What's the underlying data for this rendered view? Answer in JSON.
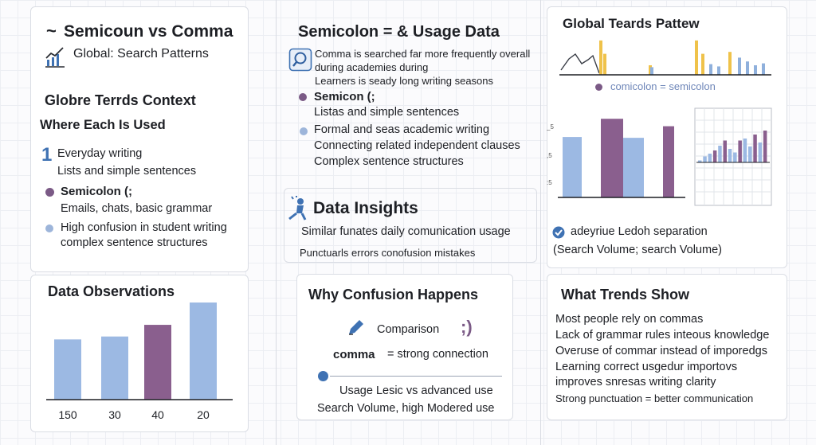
{
  "colors": {
    "blue_bar": "#9cb9e3",
    "purple_bar": "#8a5f8e",
    "yellow_bar": "#efc24a",
    "accent_blue": "#3f72b3"
  },
  "left": {
    "title": "Semicoun vs Comma",
    "subtitle": "Global: Search Patterns",
    "context_title": "Globre Terrds Context",
    "where_used": "Where Each Is Used",
    "list_number": "1",
    "item1_title": "Everyday writing",
    "item1_sub": "Lists and simple sentences",
    "item2_title": "Semicolon (;",
    "item2_sub": "Emails, chats, basic grammar",
    "item3_line1": "High confusion in student writing",
    "item3_line2": "complex sentence structures"
  },
  "observations": {
    "title": "Data Observations",
    "chart_data": {
      "type": "bar",
      "categories": [
        "150",
        "30",
        "40",
        "20"
      ],
      "values": [
        0.62,
        0.65,
        0.77,
        1.0
      ],
      "colors": [
        "blue",
        "blue",
        "purple",
        "blue"
      ]
    }
  },
  "middle": {
    "title": "Semicolon = & Usage Data",
    "search_line1": "Comma is searched far more frequently overall",
    "search_line2": "during academies during",
    "search_line3": "Learners is seady long writing seasons",
    "semicolon_title": "Semicon (;",
    "semicolon_sub": "Listas and simple sentences",
    "formal_title": "Formal and seas academic writing",
    "formal_sub1": "Connecting related independent clauses",
    "formal_sub2": "Complex sentence structures"
  },
  "insights": {
    "title": "Data Insights",
    "line1": "Similar funates daily comunication usage",
    "line2": "Punctuarls errors conofusion mistakes"
  },
  "confusion": {
    "title": "Why Confusion Happens",
    "comparison": "Comparison",
    "semicolon_glyph": ";)",
    "comma_word": "comma",
    "equals_text": "= strong connection",
    "usage": "Usage Lesic vs advanced use",
    "search": "Search Volume, high Modered use"
  },
  "global": {
    "title": "Global Teards Pattew",
    "legend_text": "comicolon = semicolon",
    "line_chart": {
      "type": "bar",
      "series": [
        {
          "values": [
            0.9,
            0.55,
            0.0,
            0.0,
            0.3,
            0.0,
            0.0,
            0.0,
            0.9,
            0.15,
            0.2,
            0.0
          ]
        },
        {
          "values": [
            0.0,
            0.0,
            0.0,
            0.0,
            0.0,
            0.0,
            0.0,
            0.0,
            0.0,
            0.45,
            0.35,
            0.25
          ]
        }
      ]
    },
    "bar_chart": {
      "type": "bar",
      "values": [
        0.73,
        0.95,
        0.72,
        0.86
      ],
      "colors": [
        "blue",
        "purple",
        "blue",
        "purple"
      ]
    },
    "small_chart": {
      "type": "bar",
      "values": [
        0.05,
        0.15,
        0.22,
        0.3,
        0.42,
        0.55,
        0.34,
        0.25,
        0.55,
        0.6,
        0.4,
        0.7,
        0.5,
        0.8
      ],
      "colors": [
        "blue",
        "blue",
        "blue",
        "purple",
        "blue",
        "purple",
        "blue",
        "blue",
        "purple",
        "blue",
        "blue",
        "purple",
        "blue",
        "purple"
      ]
    },
    "note_line1": "adeyriue Ledoh separation",
    "note_line2": "(Search Volume; search Volume)"
  },
  "trends": {
    "title": "What Trends Show",
    "items": [
      "Most people rely on commas",
      "Lack of grammar rules inteous knowledge",
      "Overuse of commar instead of imporedgs",
      "Learning correct usgedur importovs",
      "improves snresas writing clarity",
      "Strong punctuation = better communication"
    ]
  }
}
